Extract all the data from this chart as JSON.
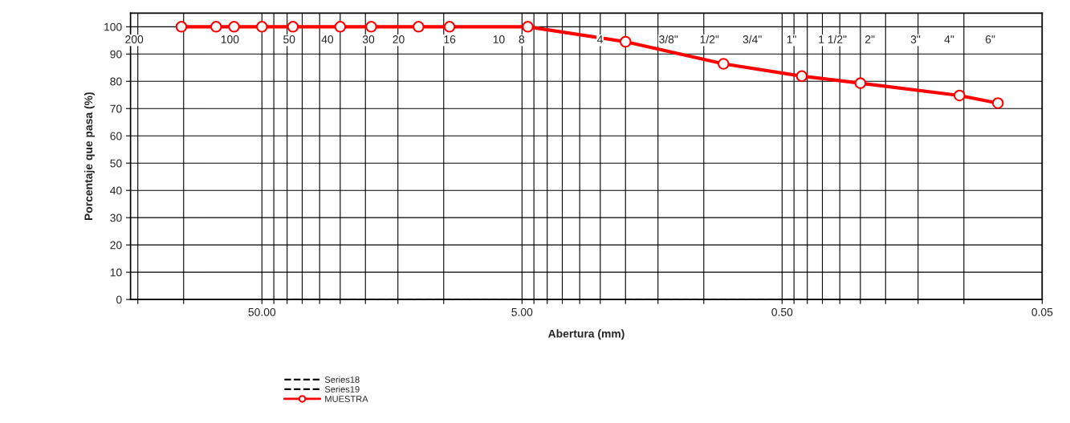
{
  "chart_data": {
    "type": "line",
    "xlabel": "Abertura (mm)",
    "ylabel": "Porcentaje que pasa (%)",
    "log": "x",
    "xlim": [
      160,
      0.05
    ],
    "ylim": [
      0,
      105
    ],
    "xticks": [
      {
        "value": 150,
        "label": null
      },
      {
        "value": 100,
        "label": null
      },
      {
        "value": 50,
        "label": "50.00"
      },
      {
        "value": 45,
        "label": null
      },
      {
        "value": 40,
        "label": null
      },
      {
        "value": 35,
        "label": null
      },
      {
        "value": 30,
        "label": null
      },
      {
        "value": 25,
        "label": null
      },
      {
        "value": 20,
        "label": null
      },
      {
        "value": 15,
        "label": null
      },
      {
        "value": 10,
        "label": null
      },
      {
        "value": 5,
        "label": "5.00"
      },
      {
        "value": 4.5,
        "label": null
      },
      {
        "value": 4,
        "label": null
      },
      {
        "value": 3.5,
        "label": null
      },
      {
        "value": 3,
        "label": null
      },
      {
        "value": 2.5,
        "label": null
      },
      {
        "value": 2,
        "label": null
      },
      {
        "value": 1.5,
        "label": null
      },
      {
        "value": 1,
        "label": null
      },
      {
        "value": 0.5,
        "label": "0.50"
      },
      {
        "value": 0.45,
        "label": null
      },
      {
        "value": 0.4,
        "label": null
      },
      {
        "value": 0.35,
        "label": null
      },
      {
        "value": 0.3,
        "label": null
      },
      {
        "value": 0.25,
        "label": null
      },
      {
        "value": 0.2,
        "label": null
      },
      {
        "value": 0.15,
        "label": null
      },
      {
        "value": 0.1,
        "label": null
      },
      {
        "value": 0.05,
        "label": "0.05"
      }
    ],
    "yticks": [
      0,
      10,
      20,
      30,
      40,
      50,
      60,
      70,
      80,
      90,
      100
    ],
    "grid": true,
    "legend": "bottom left",
    "series": [
      {
        "name": "Series18",
        "color": "#000000",
        "line_style": "dashed",
        "marker": "none",
        "x": [
          38,
          4.75
        ],
        "values": [
          0,
          0
        ]
      },
      {
        "name": "Series19",
        "color": "#000000",
        "line_style": "dashed",
        "marker": "none",
        "x": [
          2,
          0.42
        ],
        "values": [
          0,
          0
        ]
      },
      {
        "name": "MUESTRA",
        "color": "#ff0000",
        "line_style": "solid",
        "marker": "circle",
        "x": [
          102,
          75,
          64,
          50,
          38,
          25,
          19,
          12.5,
          9.5,
          4.75,
          2.0,
          0.84,
          0.42,
          0.25,
          0.104,
          0.074
        ],
        "values": [
          100,
          100,
          100,
          100,
          100,
          100,
          100,
          100,
          100,
          100,
          94.5,
          86.4,
          81.9,
          79.3,
          74.8,
          72.0
        ]
      }
    ],
    "annotations": [
      "200",
      "100",
      "50",
      "40",
      "30",
      "20",
      "16",
      "10",
      "8",
      "4",
      "3/8\"",
      "1/2\"",
      "3/4\"",
      "1\"",
      "1 1/2\"",
      "2\"",
      "3\"",
      "4\"",
      "6\""
    ]
  }
}
